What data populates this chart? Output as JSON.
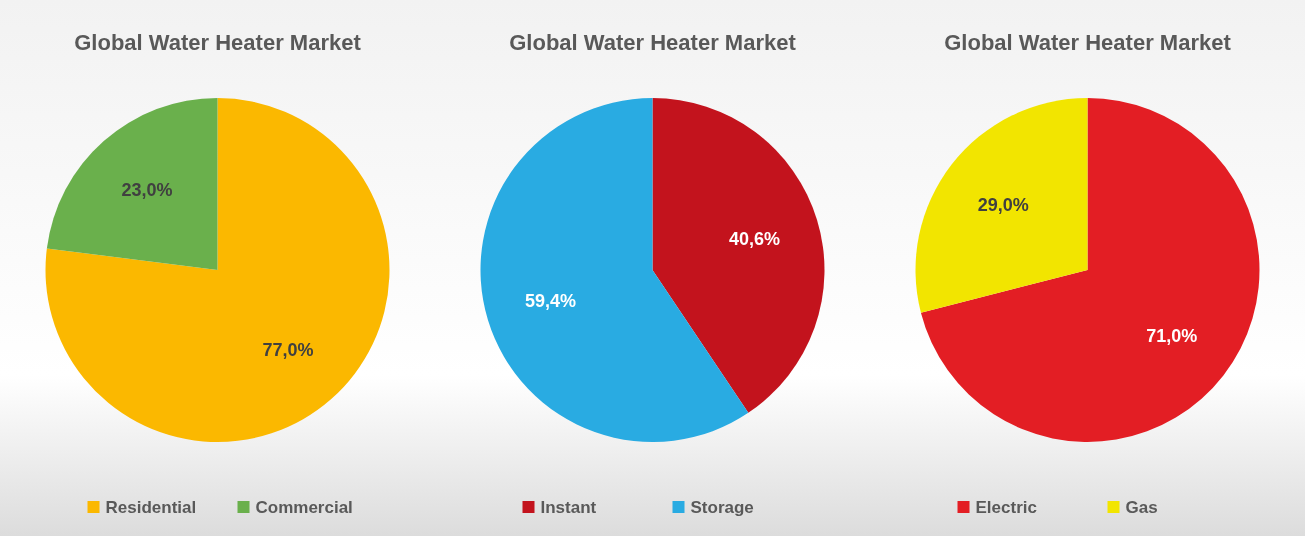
{
  "chart_data": [
    {
      "type": "pie",
      "title": "Global Water Heater Market",
      "categories": [
        "Residential",
        "Commercial"
      ],
      "values": [
        77.0,
        23.0
      ],
      "colors": [
        "#fbb800",
        "#6ab04c"
      ],
      "value_labels": [
        "77,0%",
        "23,0%"
      ],
      "legend": "bottom"
    },
    {
      "type": "pie",
      "title": "Global Water Heater Market",
      "categories": [
        "Instant",
        "Storage"
      ],
      "values": [
        40.6,
        59.4
      ],
      "colors": [
        "#c3131d",
        "#29abe2"
      ],
      "value_labels": [
        "40,6%",
        "59,4%"
      ],
      "legend": "bottom"
    },
    {
      "type": "pie",
      "title": "Global Water Heater Market",
      "categories": [
        "Electric",
        "Gas"
      ],
      "values": [
        71.0,
        29.0
      ],
      "colors": [
        "#e31e24",
        "#f2e500"
      ],
      "value_labels": [
        "71,0%",
        "29,0%"
      ],
      "legend": "bottom"
    }
  ]
}
